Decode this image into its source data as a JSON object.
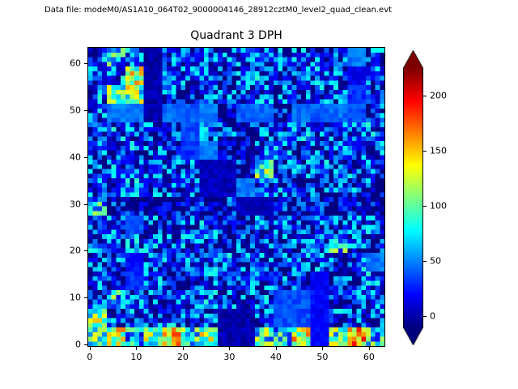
{
  "header": {
    "data_file_label": "Data file: modeM0/AS1A10_064T02_9000004146_28912cztM0_level2_quad_clean.evt"
  },
  "chart_data": {
    "type": "heatmap",
    "title": "Quadrant 3 DPH",
    "xlabel": "",
    "ylabel": "",
    "x_range": [
      -0.5,
      63.5
    ],
    "y_range": [
      -0.5,
      63.5
    ],
    "x_ticks": [
      0,
      10,
      20,
      30,
      40,
      50,
      60
    ],
    "y_ticks": [
      0,
      10,
      20,
      30,
      40,
      50,
      60
    ],
    "grid": "off",
    "colormap": "jet",
    "colorbar": {
      "ticks": [
        0,
        50,
        100,
        150,
        200
      ],
      "vmin": -10,
      "vmax": 225,
      "extend": "both",
      "under_color": "#00007f",
      "over_color": "#7f0000"
    },
    "grid_resolution": [
      64,
      64
    ],
    "values_grid_note": "16x16 downsampled approximate counts, rows ordered top (y=63..60) to bottom (y=3..0)",
    "values_16x16": [
      [
        88,
        120,
        95,
        8,
        85,
        90,
        82,
        86,
        90,
        82,
        85,
        90,
        80,
        85,
        55,
        82
      ],
      [
        85,
        92,
        175,
        8,
        82,
        86,
        90,
        82,
        86,
        90,
        82,
        86,
        90,
        82,
        25,
        86
      ],
      [
        95,
        140,
        155,
        8,
        85,
        62,
        82,
        86,
        82,
        90,
        86,
        82,
        90,
        86,
        38,
        82
      ],
      [
        86,
        55,
        52,
        8,
        52,
        48,
        55,
        58,
        48,
        52,
        58,
        52,
        48,
        52,
        45,
        78
      ],
      [
        82,
        90,
        86,
        82,
        86,
        45,
        86,
        82,
        62,
        86,
        82,
        90,
        86,
        82,
        86,
        90
      ],
      [
        86,
        82,
        90,
        86,
        82,
        38,
        55,
        82,
        62,
        86,
        90,
        82,
        86,
        90,
        82,
        86
      ],
      [
        82,
        90,
        86,
        82,
        86,
        82,
        12,
        12,
        62,
        140,
        82,
        86,
        90,
        82,
        86,
        82
      ],
      [
        86,
        82,
        90,
        86,
        82,
        86,
        12,
        12,
        55,
        82,
        86,
        62,
        82,
        86,
        90,
        82
      ],
      [
        120,
        65,
        60,
        65,
        60,
        65,
        60,
        65,
        12,
        12,
        65,
        60,
        65,
        60,
        65,
        60
      ],
      [
        82,
        90,
        45,
        86,
        82,
        86,
        90,
        82,
        70,
        86,
        82,
        90,
        86,
        82,
        86,
        90
      ],
      [
        86,
        82,
        90,
        86,
        82,
        90,
        82,
        62,
        82,
        86,
        90,
        82,
        86,
        125,
        82,
        86
      ],
      [
        82,
        86,
        28,
        82,
        86,
        82,
        86,
        90,
        82,
        86,
        82,
        90,
        86,
        82,
        86,
        55
      ],
      [
        86,
        82,
        38,
        86,
        82,
        62,
        86,
        82,
        90,
        82,
        86,
        82,
        28,
        86,
        82,
        90
      ],
      [
        82,
        125,
        86,
        82,
        86,
        82,
        90,
        86,
        82,
        90,
        45,
        45,
        28,
        82,
        86,
        82
      ],
      [
        160,
        82,
        86,
        82,
        90,
        82,
        86,
        8,
        8,
        82,
        45,
        45,
        28,
        86,
        82,
        86
      ],
      [
        140,
        170,
        110,
        150,
        190,
        130,
        160,
        8,
        8,
        140,
        120,
        180,
        28,
        150,
        200,
        130
      ]
    ]
  }
}
